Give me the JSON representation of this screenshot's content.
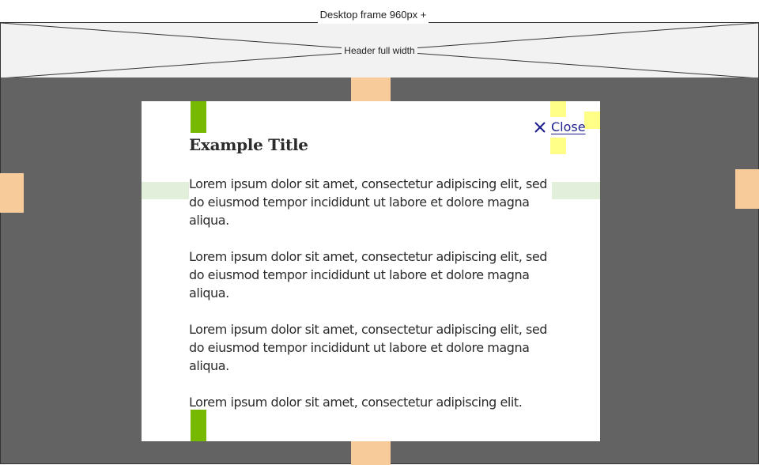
{
  "frame": {
    "label": "Desktop frame 960px +"
  },
  "header": {
    "label": "Header full width"
  },
  "modal": {
    "close_label": "Close",
    "close_icon": "close-icon",
    "title": "Example Title",
    "paragraphs": [
      "Lorem ipsum dolor sit amet, consectetur adipiscing elit, sed do eiusmod tempor incididunt ut labore et dolore magna aliqua.",
      "Lorem ipsum dolor sit amet, consectetur adipiscing elit, sed do eiusmod tempor incididunt ut labore et dolore magna aliqua.",
      "Lorem ipsum dolor sit amet, consectetur adipiscing elit, sed do eiusmod tempor incididunt ut labore et dolore magna aliqua.",
      "Lorem ipsum dolor sit amet, consectetur adipiscing elit."
    ]
  },
  "colors": {
    "overlay": "#636363",
    "header_fill": "#f2f2f2",
    "spacer_orange": "#f8cb9a",
    "accent_green": "#76b900",
    "padding_green": "#e2efdb",
    "highlight_yellow": "#ffff88",
    "link_blue": "#1d1d8f"
  }
}
